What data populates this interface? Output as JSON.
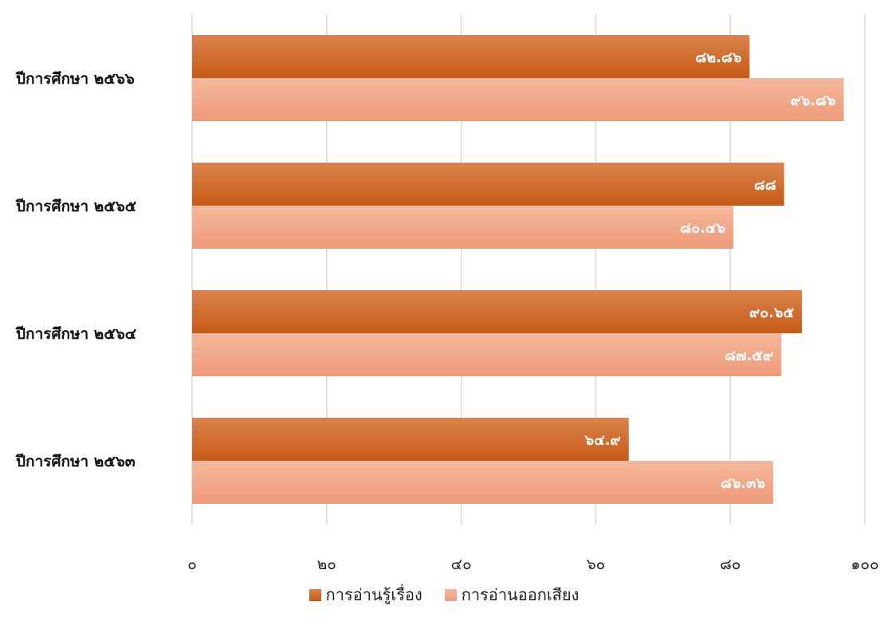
{
  "chart_data": {
    "type": "bar",
    "orientation": "horizontal",
    "categories": [
      "ปีการศึกษา ๒๕๖๖",
      "ปีการศึกษา ๒๕๖๕",
      "ปีการศึกษา ๒๕๖๔",
      "ปีการศึกษา ๒๕๖๓"
    ],
    "series": [
      {
        "name": "การอ่านรู้เรื่อง",
        "color": "#D2651E",
        "values": [
          82.86,
          88,
          90.65,
          64.9
        ],
        "labels": [
          "๘๒.๘๖",
          "๘๘",
          "๙๐.๖๕",
          "๖๔.๙"
        ]
      },
      {
        "name": "การอ่านออกเสียง",
        "color": "#F2A98A",
        "values": [
          96.86,
          80.46,
          87.59,
          86.36
        ],
        "labels": [
          "๙๖.๘๖",
          "๘๐.๔๖",
          "๘๗.๕๙",
          "๘๖.๓๖"
        ]
      }
    ],
    "xlim": [
      0,
      100
    ],
    "xticks": [
      0,
      20,
      40,
      60,
      80,
      100
    ],
    "xtick_labels": [
      "๐",
      "๒๐",
      "๔๐",
      "๖๐",
      "๘๐",
      "๑๐๐"
    ],
    "grid": "vertical",
    "legend": "bottom-center"
  }
}
